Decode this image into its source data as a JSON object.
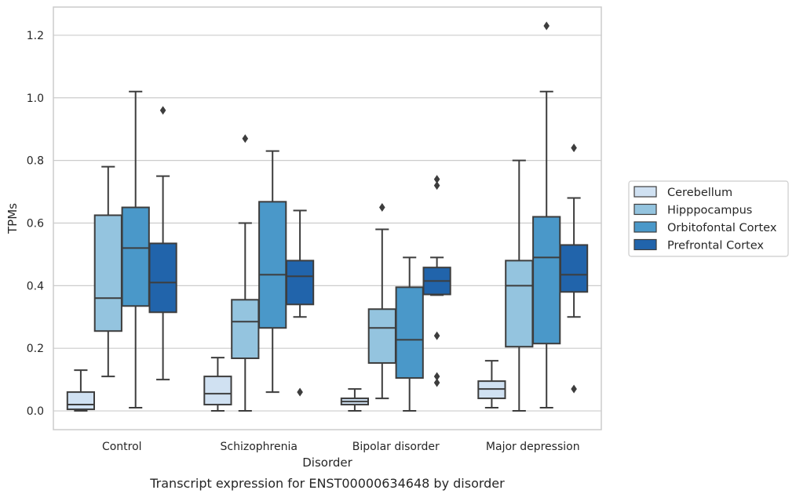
{
  "chart_data": {
    "type": "box",
    "xlabel": "Disorder",
    "ylabel": "TPMs",
    "caption": "Transcript expression for ENST00000634648 by disorder",
    "ylim": [
      -0.06,
      1.29
    ],
    "yticks": [
      0.0,
      0.2,
      0.4,
      0.6,
      0.8,
      1.0,
      1.2
    ],
    "ytick_labels": [
      "0.0",
      "0.2",
      "0.4",
      "0.6",
      "0.8",
      "1.0",
      "1.2"
    ],
    "grid": "horizontal",
    "legend_position": "right",
    "categories": [
      "Control",
      "Schizophrenia",
      "Bipolar disorder",
      "Major depression"
    ],
    "series": [
      {
        "name": "Cerebellum",
        "color": "#d0e1f2",
        "boxes": [
          {
            "whislo": 0.0,
            "q1": 0.005,
            "med": 0.02,
            "q3": 0.06,
            "whishi": 0.13,
            "fliers": []
          },
          {
            "whislo": 0.0,
            "q1": 0.02,
            "med": 0.055,
            "q3": 0.11,
            "whishi": 0.17,
            "fliers": []
          },
          {
            "whislo": 0.0,
            "q1": 0.02,
            "med": 0.03,
            "q3": 0.04,
            "whishi": 0.07,
            "fliers": []
          },
          {
            "whislo": 0.01,
            "q1": 0.04,
            "med": 0.07,
            "q3": 0.095,
            "whishi": 0.16,
            "fliers": []
          }
        ]
      },
      {
        "name": "Hipppocampus",
        "color": "#94c4df",
        "boxes": [
          {
            "whislo": 0.11,
            "q1": 0.255,
            "med": 0.36,
            "q3": 0.625,
            "whishi": 0.78,
            "fliers": []
          },
          {
            "whislo": 0.0,
            "q1": 0.168,
            "med": 0.285,
            "q3": 0.355,
            "whishi": 0.6,
            "fliers": [
              0.87
            ]
          },
          {
            "whislo": 0.04,
            "q1": 0.153,
            "med": 0.265,
            "q3": 0.325,
            "whishi": 0.58,
            "fliers": [
              0.65
            ]
          },
          {
            "whislo": 0.0,
            "q1": 0.205,
            "med": 0.4,
            "q3": 0.48,
            "whishi": 0.8,
            "fliers": []
          }
        ]
      },
      {
        "name": "Orbitofontal Cortex",
        "color": "#4a98c9",
        "boxes": [
          {
            "whislo": 0.01,
            "q1": 0.335,
            "med": 0.52,
            "q3": 0.65,
            "whishi": 1.02,
            "fliers": []
          },
          {
            "whislo": 0.06,
            "q1": 0.265,
            "med": 0.435,
            "q3": 0.668,
            "whishi": 0.83,
            "fliers": []
          },
          {
            "whislo": 0.0,
            "q1": 0.105,
            "med": 0.227,
            "q3": 0.395,
            "whishi": 0.49,
            "fliers": []
          },
          {
            "whislo": 0.01,
            "q1": 0.215,
            "med": 0.49,
            "q3": 0.62,
            "whishi": 1.02,
            "fliers": [
              1.23
            ]
          }
        ]
      },
      {
        "name": "Prefrontal Cortex",
        "color": "#2164ab",
        "boxes": [
          {
            "whislo": 0.1,
            "q1": 0.315,
            "med": 0.41,
            "q3": 0.535,
            "whishi": 0.75,
            "fliers": [
              0.96
            ]
          },
          {
            "whislo": 0.3,
            "q1": 0.34,
            "med": 0.43,
            "q3": 0.48,
            "whishi": 0.64,
            "fliers": [
              0.06
            ]
          },
          {
            "whislo": 0.37,
            "q1": 0.372,
            "med": 0.415,
            "q3": 0.458,
            "whishi": 0.49,
            "fliers": [
              0.74,
              0.72,
              0.24,
              0.11,
              0.09
            ]
          },
          {
            "whislo": 0.3,
            "q1": 0.38,
            "med": 0.435,
            "q3": 0.53,
            "whishi": 0.68,
            "fliers": [
              0.84,
              0.07
            ]
          }
        ]
      }
    ]
  }
}
